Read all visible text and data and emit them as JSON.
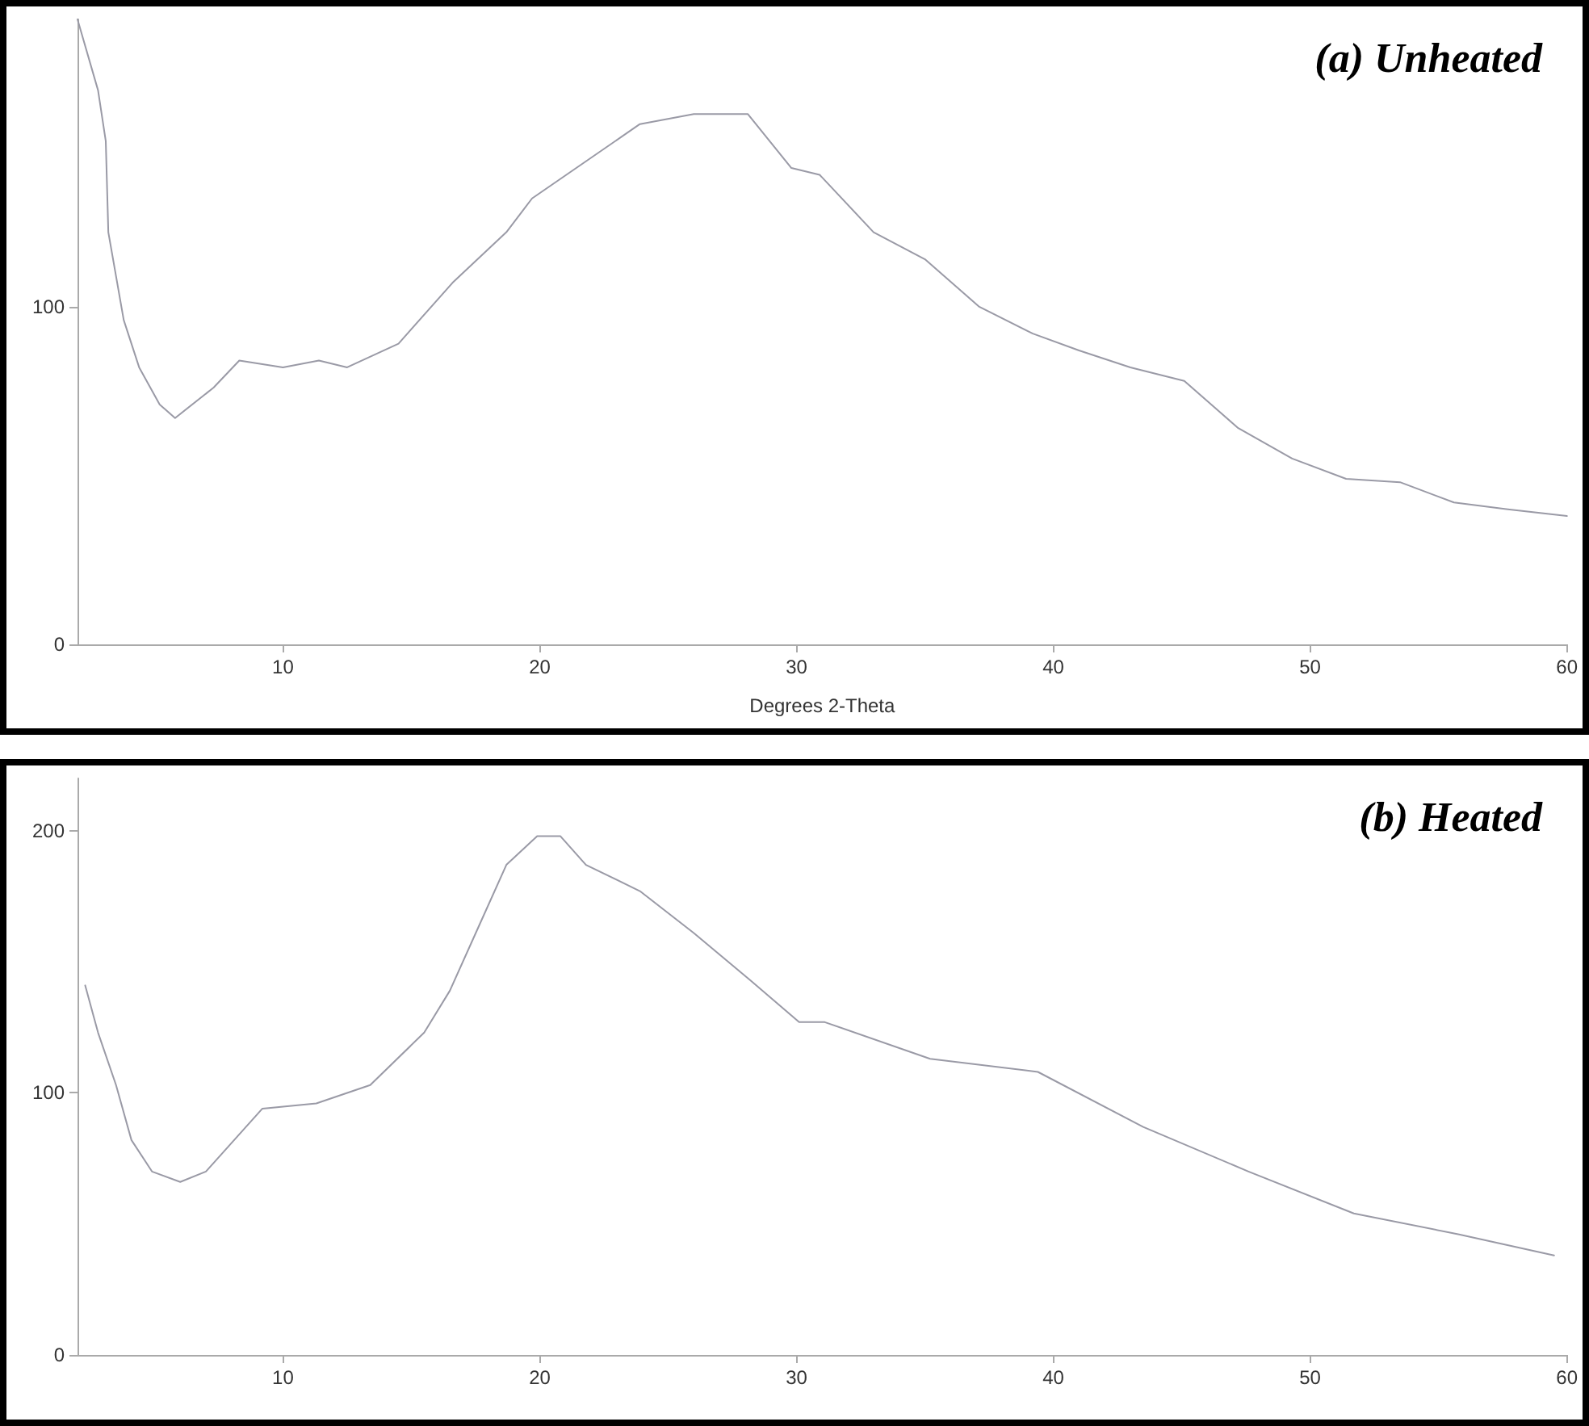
{
  "chart_data": [
    {
      "type": "line",
      "title": "(a) Unheated",
      "xlabel": "Degrees 2-Theta",
      "xlim": [
        2,
        60
      ],
      "xticks": [
        10,
        20,
        30,
        40,
        50,
        60
      ],
      "ylim": [
        0,
        185
      ],
      "yticks": [
        0,
        100
      ],
      "grid": false,
      "marker": "none",
      "line_style": "solid",
      "series": [
        {
          "color": "#9a9aa6",
          "x": [
            2,
            2.8,
            3.1,
            3.2,
            3.8,
            4.4,
            5.2,
            5.8,
            7.3,
            8.3,
            10,
            11.4,
            12.5,
            14.5,
            16.6,
            18.7,
            19.7,
            21.8,
            23.9,
            26,
            28.1,
            29.8,
            30.9,
            33,
            35,
            37.1,
            39.2,
            41,
            43,
            45.1,
            47.2,
            49.3,
            51.4,
            53.5,
            55.6,
            57.7,
            60
          ],
          "values": [
            185,
            164,
            149,
            122,
            96,
            82,
            71,
            67,
            76,
            84,
            82,
            84,
            82,
            89,
            107,
            122,
            132,
            143,
            154,
            157,
            157,
            141,
            139,
            122,
            114,
            100,
            92,
            87,
            82,
            78,
            64,
            55,
            49,
            48,
            42,
            40,
            38
          ]
        }
      ]
    },
    {
      "type": "line",
      "title": "(b) Heated",
      "xlim": [
        2,
        60
      ],
      "xticks": [
        10,
        20,
        30,
        40,
        50,
        60
      ],
      "ylim": [
        0,
        220
      ],
      "yticks": [
        0,
        100,
        200
      ],
      "grid": false,
      "marker": "none",
      "line_style": "solid",
      "series": [
        {
          "color": "#9a9aa6",
          "x": [
            2.3,
            2.8,
            3.5,
            4.1,
            4.9,
            6,
            7,
            8.1,
            9.2,
            11.3,
            13.4,
            15.5,
            16.5,
            17.6,
            18.7,
            19.9,
            20.8,
            21.8,
            23.9,
            26,
            28.2,
            30.1,
            31.1,
            35.2,
            39.4,
            43.5,
            47.6,
            51.7,
            55.8,
            59.5
          ],
          "values": [
            141,
            123,
            103,
            82,
            70,
            66,
            70,
            82,
            94,
            96,
            103,
            123,
            139,
            163,
            187,
            198,
            198,
            187,
            177,
            161,
            143,
            127,
            127,
            113,
            108,
            87,
            70,
            54,
            46,
            38
          ]
        }
      ]
    }
  ]
}
